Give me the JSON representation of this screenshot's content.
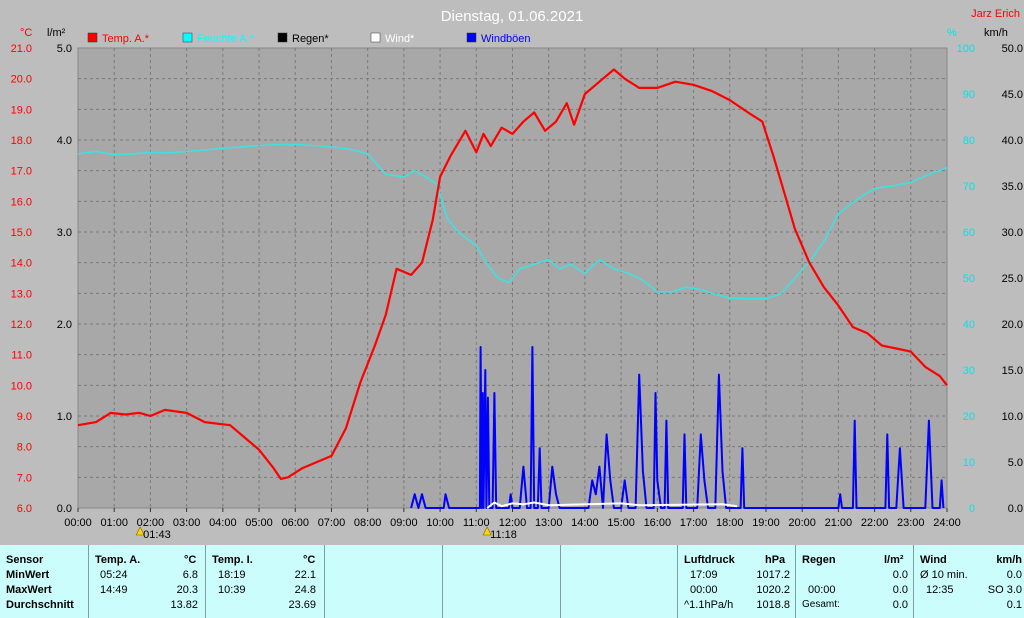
{
  "header": {
    "title": "Dienstag, 01.06.2021",
    "author": "Jarz Erich"
  },
  "axes": {
    "left_temp_unit": "°C",
    "left_rain_unit": "l/m²",
    "right_hum_unit": "%",
    "right_wind_unit": "km/h",
    "temp_ticks": [
      "21.0",
      "20.0",
      "19.0",
      "18.0",
      "17.0",
      "16.0",
      "15.0",
      "14.0",
      "13.0",
      "12.0",
      "11.0",
      "10.0",
      "9.0",
      "8.0",
      "7.0",
      "6.0"
    ],
    "rain_ticks": [
      "5.0",
      "4.0",
      "3.0",
      "2.0",
      "1.0",
      "0.0"
    ],
    "hum_ticks": [
      "100",
      "90",
      "80",
      "70",
      "60",
      "50",
      "40",
      "30",
      "20",
      "10",
      "0"
    ],
    "wind_ticks": [
      "50.0",
      "45.0",
      "40.0",
      "35.0",
      "30.0",
      "25.0",
      "20.0",
      "15.0",
      "10.0",
      "5.0",
      "0.0"
    ],
    "time_ticks": [
      "00:00",
      "01:00",
      "02:00",
      "03:00",
      "04:00",
      "05:00",
      "06:00",
      "07:00",
      "08:00",
      "09:00",
      "10:00",
      "11:00",
      "12:00",
      "13:00",
      "14:00",
      "15:00",
      "16:00",
      "17:00",
      "18:00",
      "19:00",
      "20:00",
      "21:00",
      "22:00",
      "23:00",
      "24:00"
    ]
  },
  "legend": [
    {
      "label": "Temp. A.*",
      "color": "#ff0000"
    },
    {
      "label": "Feuchte A.*",
      "color": "#00ffff"
    },
    {
      "label": "Regen*",
      "color": "#000000"
    },
    {
      "label": "Wind*",
      "color": "#ffffff"
    },
    {
      "label": "Windböen",
      "color": "#0000ff"
    }
  ],
  "markers": {
    "sunrise": "01:43",
    "sunset": "11:18"
  },
  "colors": {
    "temp": "#ff0000",
    "humidity": "#40e0e0",
    "gust": "#0000ff",
    "wind": "#ffffff",
    "plot_bg": "#a8a8a8",
    "grid": "#7a7a7a"
  },
  "chart_data": {
    "type": "line",
    "title": "Dienstag, 01.06.2021",
    "x_unit": "hours",
    "xlim": [
      0,
      24
    ],
    "ylim_temp": [
      6,
      21
    ],
    "ylim_rain": [
      0,
      5
    ],
    "ylim_humidity": [
      0,
      100
    ],
    "ylim_wind": [
      0,
      50
    ],
    "series": [
      {
        "name": "Temp. A.*",
        "axis": "temp",
        "points": [
          [
            0,
            8.7
          ],
          [
            0.5,
            8.8
          ],
          [
            0.9,
            9.1
          ],
          [
            1.3,
            9.05
          ],
          [
            1.7,
            9.1
          ],
          [
            2,
            9.0
          ],
          [
            2.4,
            9.2
          ],
          [
            3,
            9.1
          ],
          [
            3.5,
            8.8
          ],
          [
            4.2,
            8.7
          ],
          [
            4.6,
            8.3
          ],
          [
            5.0,
            7.9
          ],
          [
            5.4,
            7.3
          ],
          [
            5.6,
            6.95
          ],
          [
            5.8,
            7.0
          ],
          [
            6.2,
            7.3
          ],
          [
            6.6,
            7.5
          ],
          [
            7.0,
            7.7
          ],
          [
            7.4,
            8.6
          ],
          [
            7.8,
            10.1
          ],
          [
            8.2,
            11.3
          ],
          [
            8.5,
            12.3
          ],
          [
            8.8,
            13.8
          ],
          [
            9.2,
            13.6
          ],
          [
            9.5,
            14.0
          ],
          [
            9.8,
            15.4
          ],
          [
            10.0,
            16.8
          ],
          [
            10.3,
            17.5
          ],
          [
            10.7,
            18.3
          ],
          [
            11.0,
            17.6
          ],
          [
            11.2,
            18.2
          ],
          [
            11.4,
            17.8
          ],
          [
            11.7,
            18.4
          ],
          [
            12.0,
            18.2
          ],
          [
            12.3,
            18.6
          ],
          [
            12.6,
            18.9
          ],
          [
            12.9,
            18.3
          ],
          [
            13.2,
            18.6
          ],
          [
            13.5,
            19.2
          ],
          [
            13.7,
            18.5
          ],
          [
            14.0,
            19.5
          ],
          [
            14.4,
            19.9
          ],
          [
            14.8,
            20.3
          ],
          [
            15.1,
            20.0
          ],
          [
            15.5,
            19.7
          ],
          [
            16.0,
            19.7
          ],
          [
            16.5,
            19.9
          ],
          [
            17.0,
            19.8
          ],
          [
            17.5,
            19.6
          ],
          [
            18.0,
            19.3
          ],
          [
            18.5,
            18.9
          ],
          [
            18.9,
            18.6
          ],
          [
            19.2,
            17.5
          ],
          [
            19.5,
            16.3
          ],
          [
            19.8,
            15.1
          ],
          [
            20.2,
            14.0
          ],
          [
            20.6,
            13.2
          ],
          [
            21.0,
            12.6
          ],
          [
            21.4,
            11.9
          ],
          [
            21.8,
            11.7
          ],
          [
            22.2,
            11.3
          ],
          [
            22.6,
            11.2
          ],
          [
            23.0,
            11.1
          ],
          [
            23.4,
            10.6
          ],
          [
            23.8,
            10.3
          ],
          [
            24,
            10.0
          ]
        ]
      },
      {
        "name": "Feuchte A.*",
        "axis": "humidity",
        "points": [
          [
            0,
            77
          ],
          [
            0.5,
            77.5
          ],
          [
            1,
            76.8
          ],
          [
            1.5,
            77
          ],
          [
            2,
            77.3
          ],
          [
            2.5,
            77.2
          ],
          [
            3,
            77.5
          ],
          [
            3.5,
            77.8
          ],
          [
            4,
            78.2
          ],
          [
            4.5,
            78.5
          ],
          [
            5,
            78.8
          ],
          [
            5.5,
            79
          ],
          [
            6,
            79
          ],
          [
            6.5,
            78.8
          ],
          [
            7,
            78.5
          ],
          [
            7.5,
            78
          ],
          [
            8,
            77
          ],
          [
            8.5,
            72.5
          ],
          [
            9,
            72
          ],
          [
            9.3,
            73.3
          ],
          [
            9.6,
            72
          ],
          [
            9.9,
            70.5
          ],
          [
            10.2,
            63
          ],
          [
            10.5,
            60
          ],
          [
            11,
            57
          ],
          [
            11.3,
            53
          ],
          [
            11.6,
            50
          ],
          [
            11.9,
            49
          ],
          [
            12.2,
            52
          ],
          [
            12.6,
            53
          ],
          [
            13,
            54
          ],
          [
            13.3,
            52
          ],
          [
            13.6,
            53
          ],
          [
            14,
            51
          ],
          [
            14.4,
            54
          ],
          [
            14.8,
            52
          ],
          [
            15.2,
            51
          ],
          [
            15.6,
            49.5
          ],
          [
            16,
            47
          ],
          [
            16.4,
            47
          ],
          [
            16.8,
            48
          ],
          [
            17.2,
            47.5
          ],
          [
            17.6,
            46.5
          ],
          [
            18,
            45.6
          ],
          [
            18.5,
            45.5
          ],
          [
            19,
            45.5
          ],
          [
            19.4,
            46.5
          ],
          [
            19.8,
            50
          ],
          [
            20.2,
            53.5
          ],
          [
            20.6,
            58
          ],
          [
            21,
            64
          ],
          [
            21.5,
            67
          ],
          [
            22,
            69.5
          ],
          [
            22.5,
            70
          ],
          [
            23,
            70.8
          ],
          [
            23.5,
            72.5
          ],
          [
            24,
            74
          ]
        ]
      },
      {
        "name": "Windböen",
        "axis": "wind",
        "points": [
          [
            9.2,
            0
          ],
          [
            9.3,
            1.5
          ],
          [
            9.4,
            0
          ],
          [
            9.5,
            1.5
          ],
          [
            9.6,
            0
          ],
          [
            10.1,
            0
          ],
          [
            10.15,
            1.5
          ],
          [
            10.25,
            0
          ],
          [
            11.1,
            0
          ],
          [
            11.12,
            17.5
          ],
          [
            11.15,
            0
          ],
          [
            11.18,
            12.5
          ],
          [
            11.2,
            0
          ],
          [
            11.25,
            15
          ],
          [
            11.28,
            0
          ],
          [
            11.32,
            12
          ],
          [
            11.36,
            0
          ],
          [
            11.45,
            0
          ],
          [
            11.5,
            12.5
          ],
          [
            11.55,
            0
          ],
          [
            11.9,
            0
          ],
          [
            11.95,
            1.5
          ],
          [
            12.0,
            0
          ],
          [
            12.2,
            0
          ],
          [
            12.3,
            4.5
          ],
          [
            12.4,
            0
          ],
          [
            12.5,
            0
          ],
          [
            12.55,
            17.5
          ],
          [
            12.6,
            0
          ],
          [
            12.7,
            0
          ],
          [
            12.75,
            6.5
          ],
          [
            12.8,
            0
          ],
          [
            13.0,
            0
          ],
          [
            13.1,
            4.5
          ],
          [
            13.2,
            1.5
          ],
          [
            13.3,
            0
          ],
          [
            14.1,
            0
          ],
          [
            14.2,
            3
          ],
          [
            14.3,
            1.5
          ],
          [
            14.4,
            4.5
          ],
          [
            14.5,
            0
          ],
          [
            14.6,
            8
          ],
          [
            14.7,
            3
          ],
          [
            14.8,
            0
          ],
          [
            15.0,
            0
          ],
          [
            15.1,
            3
          ],
          [
            15.2,
            0
          ],
          [
            15.4,
            0
          ],
          [
            15.5,
            14.5
          ],
          [
            15.6,
            4
          ],
          [
            15.7,
            0
          ],
          [
            15.9,
            0
          ],
          [
            15.95,
            12.5
          ],
          [
            16.0,
            3
          ],
          [
            16.1,
            0
          ],
          [
            16.2,
            0
          ],
          [
            16.25,
            9.5
          ],
          [
            16.3,
            0
          ],
          [
            16.7,
            0
          ],
          [
            16.75,
            8
          ],
          [
            16.8,
            0
          ],
          [
            17.1,
            0
          ],
          [
            17.2,
            8
          ],
          [
            17.3,
            3
          ],
          [
            17.4,
            0
          ],
          [
            17.6,
            0
          ],
          [
            17.7,
            14.5
          ],
          [
            17.8,
            4
          ],
          [
            17.9,
            0
          ],
          [
            18.3,
            0
          ],
          [
            18.35,
            6.5
          ],
          [
            18.4,
            0
          ],
          [
            21.0,
            0
          ],
          [
            21.05,
            1.5
          ],
          [
            21.1,
            0
          ],
          [
            21.4,
            0
          ],
          [
            21.45,
            9.5
          ],
          [
            21.5,
            0
          ],
          [
            22.3,
            0
          ],
          [
            22.35,
            8
          ],
          [
            22.4,
            0
          ],
          [
            22.6,
            0
          ],
          [
            22.7,
            6.5
          ],
          [
            22.8,
            0
          ],
          [
            23.4,
            0
          ],
          [
            23.5,
            9.5
          ],
          [
            23.6,
            0
          ],
          [
            23.8,
            0
          ],
          [
            23.85,
            3
          ],
          [
            23.9,
            0
          ]
        ]
      },
      {
        "name": "Wind*",
        "axis": "wind",
        "points": [
          [
            11.3,
            0
          ],
          [
            11.5,
            0.6
          ],
          [
            11.7,
            0.2
          ],
          [
            12.0,
            0.5
          ],
          [
            12.3,
            0.4
          ],
          [
            12.6,
            0.6
          ],
          [
            13.0,
            0.3
          ],
          [
            15.0,
            0.5
          ],
          [
            15.5,
            0.3
          ],
          [
            17.8,
            0.4
          ],
          [
            18.2,
            0.2
          ]
        ]
      }
    ]
  },
  "table": {
    "sensor": {
      "header": "Sensor",
      "rows": [
        "MinWert",
        "MaxWert",
        "Durchschnitt"
      ]
    },
    "temp_a": {
      "header": "Temp. A.",
      "unit": "°C",
      "times": [
        "05:24",
        "14:49",
        ""
      ],
      "values": [
        "6.8",
        "20.3",
        "13.82"
      ]
    },
    "temp_i": {
      "header": "Temp. I.",
      "unit": "°C",
      "times": [
        "18:19",
        "10:39",
        ""
      ],
      "values": [
        "22.1",
        "24.8",
        "23.69"
      ]
    },
    "pressure": {
      "header": "Luftdruck",
      "unit": "hPa",
      "times": [
        "17:09",
        "00:00",
        "^1.1hPa/h"
      ],
      "values": [
        "1017.2",
        "1020.2",
        "1018.8"
      ]
    },
    "rain": {
      "header": "Regen",
      "unit": "l/m²",
      "times": [
        "",
        "00:00",
        "Gesamt:"
      ],
      "values": [
        "",
        "0.0",
        "0.0"
      ],
      "first_value": "0.0"
    },
    "wind": {
      "header": "Wind",
      "unit": "km/h",
      "labels": [
        "Ø 10 min.",
        "12:35",
        ""
      ],
      "values": [
        "0.0",
        "SO 3.0",
        "0.1"
      ]
    }
  }
}
